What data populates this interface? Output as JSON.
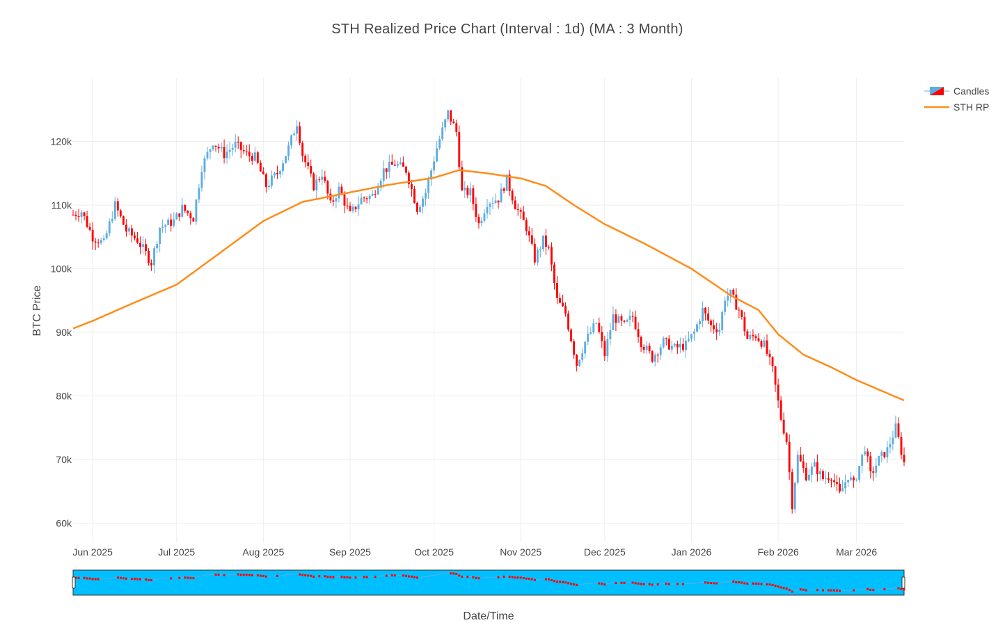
{
  "title": "STH Realized Price Chart (Interval : 1d) (MA : 3 Month)",
  "colors": {
    "up": "#5dade2",
    "down": "#ff0000",
    "ma": "#ff8c1a",
    "navigator_bg": "#00bfff",
    "grid": "#eeeeee"
  },
  "legend": {
    "candles": "Candles",
    "ma": "STH RP"
  },
  "chart_data": {
    "type": "candlestick",
    "xlabel": "Date/Time",
    "ylabel": "BTC Price",
    "x_range": [
      "2025-05-25",
      "2026-03-18"
    ],
    "ylim": [
      57000,
      130000
    ],
    "y_ticks": [
      {
        "value": 60000,
        "label": "60k"
      },
      {
        "value": 70000,
        "label": "70k"
      },
      {
        "value": 80000,
        "label": "80k"
      },
      {
        "value": 90000,
        "label": "90k"
      },
      {
        "value": 100000,
        "label": "100k"
      },
      {
        "value": 110000,
        "label": "110k"
      },
      {
        "value": 120000,
        "label": "120k"
      }
    ],
    "x_ticks": [
      {
        "date": "2025-06-01",
        "label": "Jun 2025"
      },
      {
        "date": "2025-07-01",
        "label": "Jul 2025"
      },
      {
        "date": "2025-08-01",
        "label": "Aug 2025"
      },
      {
        "date": "2025-09-01",
        "label": "Sep 2025"
      },
      {
        "date": "2025-10-01",
        "label": "Oct 2025"
      },
      {
        "date": "2025-11-01",
        "label": "Nov 2025"
      },
      {
        "date": "2025-12-01",
        "label": "Dec 2025"
      },
      {
        "date": "2026-01-01",
        "label": "Jan 2026"
      },
      {
        "date": "2026-02-01",
        "label": "Feb 2026"
      },
      {
        "date": "2026-03-01",
        "label": "Mar 2026"
      }
    ],
    "close_path": [
      [
        "2025-05-25",
        108500
      ],
      [
        "2025-05-28",
        109000
      ],
      [
        "2025-06-01",
        105000
      ],
      [
        "2025-06-05",
        104000
      ],
      [
        "2025-06-09",
        110000
      ],
      [
        "2025-06-13",
        106000
      ],
      [
        "2025-06-17",
        104500
      ],
      [
        "2025-06-22",
        101000
      ],
      [
        "2025-06-25",
        106500
      ],
      [
        "2025-06-30",
        107500
      ],
      [
        "2025-07-03",
        109500
      ],
      [
        "2025-07-07",
        108000
      ],
      [
        "2025-07-10",
        116000
      ],
      [
        "2025-07-14",
        120000
      ],
      [
        "2025-07-18",
        118000
      ],
      [
        "2025-07-22",
        119500
      ],
      [
        "2025-07-26",
        118000
      ],
      [
        "2025-07-29",
        117500
      ],
      [
        "2025-08-02",
        113000
      ],
      [
        "2025-08-06",
        115000
      ],
      [
        "2025-08-10",
        119000
      ],
      [
        "2025-08-13",
        123000
      ],
      [
        "2025-08-15",
        118000
      ],
      [
        "2025-08-19",
        113000
      ],
      [
        "2025-08-22",
        115000
      ],
      [
        "2025-08-25",
        110000
      ],
      [
        "2025-08-28",
        112500
      ],
      [
        "2025-09-01",
        108500
      ],
      [
        "2025-09-05",
        111000
      ],
      [
        "2025-09-09",
        111500
      ],
      [
        "2025-09-13",
        115500
      ],
      [
        "2025-09-17",
        116500
      ],
      [
        "2025-09-21",
        115500
      ],
      [
        "2025-09-25",
        109500
      ],
      [
        "2025-09-28",
        112000
      ],
      [
        "2025-10-02",
        119000
      ],
      [
        "2025-10-06",
        124500
      ],
      [
        "2025-10-09",
        121500
      ],
      [
        "2025-10-11",
        112000
      ],
      [
        "2025-10-14",
        112000
      ],
      [
        "2025-10-17",
        107000
      ],
      [
        "2025-10-20",
        110500
      ],
      [
        "2025-10-24",
        111000
      ],
      [
        "2025-10-27",
        114000
      ],
      [
        "2025-10-30",
        110000
      ],
      [
        "2025-11-03",
        106500
      ],
      [
        "2025-11-06",
        101500
      ],
      [
        "2025-11-09",
        104500
      ],
      [
        "2025-11-11",
        103000
      ],
      [
        "2025-11-14",
        95000
      ],
      [
        "2025-11-17",
        93000
      ],
      [
        "2025-11-21",
        85000
      ],
      [
        "2025-11-24",
        88500
      ],
      [
        "2025-11-28",
        91500
      ],
      [
        "2025-12-01",
        86500
      ],
      [
        "2025-12-04",
        92500
      ],
      [
        "2025-12-08",
        91000
      ],
      [
        "2025-12-11",
        92500
      ],
      [
        "2025-12-14",
        88500
      ],
      [
        "2025-12-18",
        86000
      ],
      [
        "2025-12-22",
        88500
      ],
      [
        "2025-12-26",
        87500
      ],
      [
        "2025-12-30",
        88000
      ],
      [
        "2026-01-02",
        90000
      ],
      [
        "2026-01-05",
        93500
      ],
      [
        "2026-01-08",
        91000
      ],
      [
        "2026-01-11",
        90500
      ],
      [
        "2026-01-13",
        95500
      ],
      [
        "2026-01-15",
        96000
      ],
      [
        "2026-01-18",
        93500
      ],
      [
        "2026-01-21",
        89000
      ],
      [
        "2026-01-24",
        89500
      ],
      [
        "2026-01-27",
        88000
      ],
      [
        "2026-01-30",
        84000
      ],
      [
        "2026-02-02",
        76500
      ],
      [
        "2026-02-04",
        73000
      ],
      [
        "2026-02-06",
        63000
      ],
      [
        "2026-02-08",
        70500
      ],
      [
        "2026-02-11",
        67500
      ],
      [
        "2026-02-14",
        69000
      ],
      [
        "2026-02-17",
        67000
      ],
      [
        "2026-02-20",
        67500
      ],
      [
        "2026-02-23",
        64500
      ],
      [
        "2026-02-26",
        67500
      ],
      [
        "2026-02-28",
        66000
      ],
      [
        "2026-03-02",
        69000
      ],
      [
        "2026-03-04",
        72000
      ],
      [
        "2026-03-06",
        67500
      ],
      [
        "2026-03-09",
        70000
      ],
      [
        "2026-03-12",
        71500
      ],
      [
        "2026-03-15",
        75000
      ],
      [
        "2026-03-18",
        69500
      ]
    ],
    "sth_rp": [
      [
        "2025-05-25",
        90600
      ],
      [
        "2025-06-01",
        91800
      ],
      [
        "2025-06-15",
        94500
      ],
      [
        "2025-07-01",
        97500
      ],
      [
        "2025-07-15",
        102000
      ],
      [
        "2025-08-01",
        107500
      ],
      [
        "2025-08-15",
        110500
      ],
      [
        "2025-09-01",
        112000
      ],
      [
        "2025-09-15",
        113200
      ],
      [
        "2025-10-01",
        114300
      ],
      [
        "2025-10-10",
        115500
      ],
      [
        "2025-10-20",
        115000
      ],
      [
        "2025-11-01",
        114200
      ],
      [
        "2025-11-10",
        113000
      ],
      [
        "2025-11-20",
        110000
      ],
      [
        "2025-12-01",
        107000
      ],
      [
        "2025-12-15",
        104000
      ],
      [
        "2026-01-01",
        100000
      ],
      [
        "2026-01-15",
        95800
      ],
      [
        "2026-01-25",
        93500
      ],
      [
        "2026-02-01",
        89700
      ],
      [
        "2026-02-10",
        86500
      ],
      [
        "2026-02-20",
        84500
      ],
      [
        "2026-03-01",
        82500
      ],
      [
        "2026-03-10",
        80800
      ],
      [
        "2026-03-18",
        79300
      ]
    ]
  }
}
